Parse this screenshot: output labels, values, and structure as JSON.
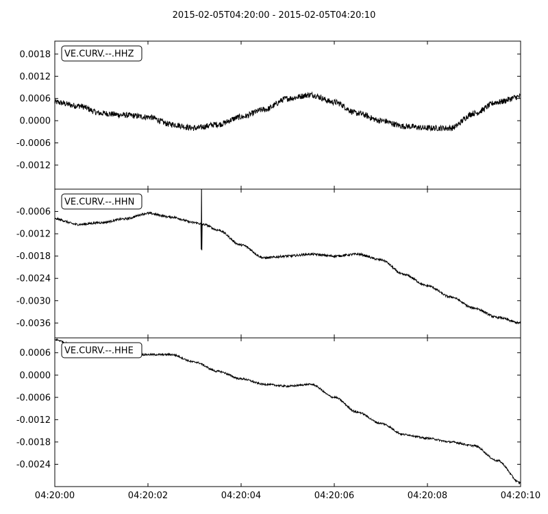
{
  "title": "2015-02-05T04:20:00  -  2015-02-05T04:20:10",
  "x_ticks": [
    "04:20:00",
    "04:20:02",
    "04:20:04",
    "04:20:06",
    "04:20:08",
    "04:20:10"
  ],
  "chart_data": [
    {
      "type": "line",
      "label": "VE.CURV.--.HHZ",
      "xlim": [
        0,
        10
      ],
      "ylim": [
        -0.00185,
        0.00215
      ],
      "yticks": [
        0.0018,
        0.0012,
        0.0006,
        0.0,
        -0.0006,
        -0.0012
      ],
      "ytick_labels": [
        "0.0018",
        "0.0012",
        "0.0006",
        "0.0000",
        "-0.0006",
        "-0.0012"
      ],
      "noise": 8e-05,
      "x": [
        0,
        0.5,
        1,
        1.5,
        2,
        2.5,
        3,
        3.5,
        4,
        4.5,
        5,
        5.5,
        6,
        6.5,
        7,
        7.5,
        8,
        8.5,
        9,
        9.5,
        10
      ],
      "y": [
        0.0005,
        0.0004,
        0.0002,
        0.00015,
        0.0001,
        -0.0001,
        -0.0002,
        -0.0001,
        0.0001,
        0.0003,
        0.0006,
        0.0007,
        0.0005,
        0.0002,
        0.0,
        -0.00015,
        -0.0002,
        -0.0002,
        0.0002,
        0.0005,
        0.00065
      ]
    },
    {
      "type": "line",
      "label": "VE.CURV.--.HHN",
      "xlim": [
        0,
        10
      ],
      "ylim": [
        -0.004,
        0.0
      ],
      "yticks": [
        -0.0006,
        -0.0012,
        -0.0018,
        -0.0024,
        -0.003,
        -0.0036
      ],
      "ytick_labels": [
        "-0.0006",
        "-0.0012",
        "-0.0018",
        "-0.0024",
        "-0.0030",
        "-0.0036"
      ],
      "noise": 3e-05,
      "x": [
        0,
        0.5,
        1,
        1.5,
        2,
        2.5,
        3,
        3.2,
        3.5,
        4,
        4.5,
        5,
        5.5,
        6,
        6.5,
        7,
        7.5,
        8,
        8.5,
        9,
        9.5,
        10
      ],
      "y": [
        -0.0008,
        -0.00095,
        -0.0009,
        -0.0008,
        -0.00065,
        -0.00075,
        -0.0009,
        -0.00095,
        -0.0011,
        -0.0015,
        -0.00185,
        -0.0018,
        -0.00175,
        -0.0018,
        -0.00175,
        -0.0019,
        -0.0023,
        -0.0026,
        -0.0029,
        -0.0032,
        -0.00345,
        -0.0036
      ]
    },
    {
      "type": "line",
      "label": "VE.CURV.--.HHE",
      "xlim": [
        0,
        10
      ],
      "ylim": [
        -0.003,
        0.001
      ],
      "yticks": [
        0.0006,
        0.0,
        -0.0006,
        -0.0012,
        -0.0018,
        -0.0024
      ],
      "ytick_labels": [
        "0.0006",
        "0.0000",
        "-0.0006",
        "-0.0012",
        "-0.0018",
        "-0.0024"
      ],
      "noise": 2.5e-05,
      "x": [
        0,
        0.5,
        1,
        1.5,
        2,
        2.5,
        3,
        3.5,
        4,
        4.5,
        5,
        5.5,
        6,
        6.5,
        7,
        7.5,
        8,
        8.5,
        9,
        9.5,
        10
      ],
      "y": [
        0.00095,
        0.00075,
        0.0006,
        0.00055,
        0.00055,
        0.00055,
        0.00035,
        0.0001,
        -0.0001,
        -0.00025,
        -0.0003,
        -0.00025,
        -0.0006,
        -0.001,
        -0.0013,
        -0.0016,
        -0.0017,
        -0.0018,
        -0.0019,
        -0.0023,
        -0.0029
      ]
    }
  ]
}
